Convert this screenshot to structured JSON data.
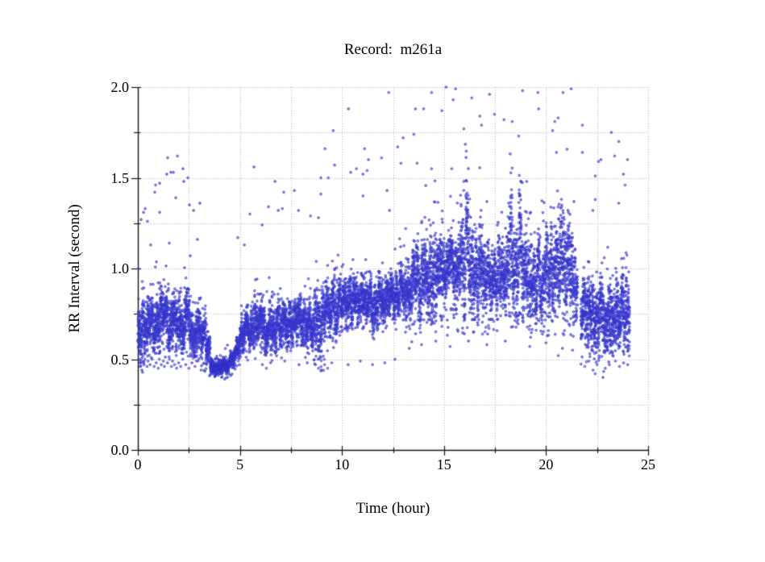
{
  "page": {
    "background": "#ffffff"
  },
  "chart_data": {
    "type": "scatter",
    "title": "Record:  m261a",
    "xlabel": "Time (hour)",
    "ylabel": "RR Interval (second)",
    "xlim": [
      0,
      25
    ],
    "ylim": [
      0.0,
      2.0
    ],
    "x_major_ticks": [
      0,
      5,
      10,
      15,
      20,
      25
    ],
    "x_major_labels": [
      "0",
      "5",
      "10",
      "15",
      "20",
      "25"
    ],
    "x_minor_step": 2.5,
    "y_major_ticks": [
      0.0,
      0.5,
      1.0,
      1.5,
      2.0
    ],
    "y_major_labels": [
      "0.0",
      "0.5",
      "1.0",
      "1.5",
      "2.0"
    ],
    "y_minor_step": 0.25,
    "grid": "dotted",
    "grid_color": "#ababab",
    "axis_color": "#161616",
    "point_color": "#3434cc",
    "point_fill": "rgba(112,112,232,0.55)",
    "point_stroke": "rgba(42,42,198,0.9)",
    "band_segments": [
      [
        0.0,
        0.3,
        0.52,
        0.82,
        130
      ],
      [
        0.3,
        0.7,
        0.55,
        0.8,
        170
      ],
      [
        0.7,
        1.1,
        0.57,
        0.86,
        175
      ],
      [
        1.1,
        1.5,
        0.6,
        0.9,
        175
      ],
      [
        1.5,
        1.9,
        0.55,
        0.85,
        175
      ],
      [
        1.9,
        2.3,
        0.58,
        0.87,
        175
      ],
      [
        2.3,
        2.7,
        0.55,
        0.84,
        175
      ],
      [
        2.7,
        3.1,
        0.53,
        0.8,
        170
      ],
      [
        3.1,
        3.4,
        0.48,
        0.74,
        115
      ],
      [
        3.4,
        3.55,
        0.44,
        0.62,
        55
      ],
      [
        3.55,
        4.5,
        0.42,
        0.5,
        420
      ],
      [
        4.5,
        4.7,
        0.44,
        0.53,
        80
      ],
      [
        4.7,
        4.85,
        0.47,
        0.58,
        55
      ],
      [
        4.85,
        5.0,
        0.51,
        0.66,
        55
      ],
      [
        5.0,
        5.2,
        0.55,
        0.73,
        80
      ],
      [
        5.2,
        5.7,
        0.56,
        0.78,
        210
      ],
      [
        5.7,
        6.2,
        0.58,
        0.84,
        210
      ],
      [
        6.2,
        6.8,
        0.55,
        0.8,
        250
      ],
      [
        6.8,
        7.4,
        0.58,
        0.82,
        250
      ],
      [
        7.4,
        8.0,
        0.6,
        0.85,
        250
      ],
      [
        8.0,
        8.6,
        0.58,
        0.82,
        250
      ],
      [
        8.6,
        9.2,
        0.52,
        0.88,
        245
      ],
      [
        9.2,
        9.8,
        0.62,
        0.92,
        245
      ],
      [
        9.8,
        10.4,
        0.68,
        0.92,
        250
      ],
      [
        10.4,
        11.0,
        0.7,
        0.94,
        250
      ],
      [
        11.0,
        11.6,
        0.68,
        0.94,
        250
      ],
      [
        11.6,
        12.2,
        0.7,
        0.95,
        250
      ],
      [
        12.2,
        12.8,
        0.73,
        0.97,
        250
      ],
      [
        12.8,
        13.4,
        0.72,
        1.0,
        250
      ],
      [
        13.4,
        14.0,
        0.72,
        1.12,
        260
      ],
      [
        14.0,
        14.6,
        0.74,
        1.18,
        260
      ],
      [
        14.6,
        15.2,
        0.75,
        1.12,
        260
      ],
      [
        15.2,
        15.8,
        0.78,
        1.16,
        260
      ],
      [
        15.8,
        16.45,
        0.76,
        1.38,
        285
      ],
      [
        16.45,
        17.0,
        0.74,
        1.2,
        240
      ],
      [
        17.0,
        17.6,
        0.72,
        1.1,
        250
      ],
      [
        17.6,
        18.2,
        0.74,
        1.16,
        250
      ],
      [
        18.2,
        18.8,
        0.76,
        1.42,
        265
      ],
      [
        18.8,
        19.4,
        0.74,
        1.22,
        250
      ],
      [
        19.4,
        20.0,
        0.72,
        1.16,
        250
      ],
      [
        20.0,
        20.6,
        0.74,
        1.22,
        250
      ],
      [
        20.6,
        21.3,
        0.74,
        1.28,
        290
      ],
      [
        21.3,
        21.55,
        0.72,
        1.1,
        90
      ],
      [
        21.7,
        22.2,
        0.55,
        0.95,
        220
      ],
      [
        22.2,
        22.8,
        0.52,
        0.95,
        265
      ],
      [
        22.8,
        23.4,
        0.55,
        0.92,
        265
      ],
      [
        23.4,
        24.1,
        0.56,
        0.96,
        300
      ]
    ],
    "outliers_high": [
      [
        0.16,
        1.27
      ],
      [
        0.28,
        1.31
      ],
      [
        0.36,
        1.33
      ],
      [
        0.47,
        1.26
      ],
      [
        0.63,
        1.13
      ],
      [
        0.83,
        1.42
      ],
      [
        0.87,
        1.46
      ],
      [
        1.07,
        1.47
      ],
      [
        1.07,
        1.31
      ],
      [
        1.42,
        1.52
      ],
      [
        1.46,
        1.61
      ],
      [
        1.54,
        1.14
      ],
      [
        1.62,
        1.53
      ],
      [
        1.74,
        1.53
      ],
      [
        1.86,
        1.39
      ],
      [
        1.94,
        1.62
      ],
      [
        2.21,
        1.55
      ],
      [
        2.25,
        1.48
      ],
      [
        2.45,
        1.5
      ],
      [
        2.53,
        1.35
      ],
      [
        2.57,
        1.07
      ],
      [
        2.73,
        1.32
      ],
      [
        2.92,
        1.16
      ],
      [
        3.04,
        1.36
      ],
      [
        4.9,
        1.17
      ],
      [
        5.22,
        1.13
      ],
      [
        5.49,
        1.3
      ],
      [
        5.69,
        1.56
      ],
      [
        6.09,
        1.24
      ],
      [
        6.4,
        1.34
      ],
      [
        6.72,
        1.48
      ],
      [
        6.88,
        1.32
      ],
      [
        7.08,
        1.33
      ],
      [
        7.15,
        1.42
      ],
      [
        7.67,
        1.43
      ],
      [
        7.87,
        1.32
      ],
      [
        8.46,
        1.29
      ],
      [
        8.85,
        1.28
      ],
      [
        8.97,
        1.5
      ],
      [
        8.97,
        1.41
      ],
      [
        9.17,
        1.66
      ],
      [
        9.33,
        1.5
      ],
      [
        9.57,
        1.76
      ],
      [
        9.64,
        1.57
      ],
      [
        10.32,
        1.88
      ],
      [
        10.43,
        1.53
      ],
      [
        10.71,
        1.55
      ],
      [
        11.03,
        1.52
      ],
      [
        11.03,
        1.4
      ],
      [
        11.11,
        1.66
      ],
      [
        11.23,
        1.54
      ],
      [
        11.3,
        1.6
      ],
      [
        11.94,
        1.61
      ],
      [
        12.21,
        1.43
      ],
      [
        12.29,
        1.97
      ],
      [
        12.33,
        1.32
      ],
      [
        12.73,
        1.67
      ],
      [
        12.89,
        1.58
      ],
      [
        13.0,
        1.72
      ],
      [
        13.12,
        1.22
      ],
      [
        13.52,
        1.74
      ],
      [
        13.6,
        1.88
      ],
      [
        13.68,
        1.58
      ],
      [
        13.91,
        1.26
      ],
      [
        14.0,
        1.88
      ],
      [
        14.39,
        1.97
      ],
      [
        14.39,
        1.55
      ],
      [
        14.9,
        1.87
      ],
      [
        15.1,
        2.0
      ],
      [
        15.38,
        1.55
      ],
      [
        15.45,
        1.93
      ],
      [
        15.57,
        1.99
      ],
      [
        15.97,
        1.77
      ],
      [
        15.97,
        1.48
      ],
      [
        15.97,
        1.43
      ],
      [
        16.36,
        1.94
      ],
      [
        16.76,
        1.84
      ],
      [
        16.84,
        1.79
      ],
      [
        16.88,
        1.24
      ],
      [
        17.23,
        1.96
      ],
      [
        17.47,
        1.85
      ],
      [
        17.83,
        1.31
      ],
      [
        17.94,
        1.82
      ],
      [
        18.34,
        1.81
      ],
      [
        18.34,
        1.39
      ],
      [
        18.66,
        1.73
      ],
      [
        18.85,
        1.98
      ],
      [
        19.05,
        1.48
      ],
      [
        19.05,
        1.31
      ],
      [
        19.25,
        1.31
      ],
      [
        19.6,
        1.97
      ],
      [
        19.64,
        1.88
      ],
      [
        20.32,
        1.76
      ],
      [
        20.43,
        1.81
      ],
      [
        20.51,
        1.64
      ],
      [
        20.59,
        1.83
      ],
      [
        20.59,
        1.34
      ],
      [
        20.83,
        1.97
      ],
      [
        20.83,
        1.32
      ],
      [
        21.23,
        1.99
      ],
      [
        21.78,
        1.79
      ],
      [
        21.78,
        1.64
      ],
      [
        22.29,
        1.32
      ],
      [
        22.41,
        1.51
      ],
      [
        22.41,
        1.38
      ],
      [
        22.57,
        1.59
      ],
      [
        22.69,
        1.6
      ],
      [
        23.2,
        1.75
      ],
      [
        23.36,
        1.62
      ],
      [
        23.56,
        1.7
      ],
      [
        23.56,
        1.36
      ],
      [
        23.79,
        1.52
      ],
      [
        23.87,
        1.46
      ],
      [
        23.99,
        1.6
      ]
    ],
    "outliers_low": [
      [
        0.05,
        0.5
      ],
      [
        0.1,
        0.46
      ],
      [
        0.15,
        0.48
      ],
      [
        0.2,
        0.44
      ],
      [
        0.3,
        0.47
      ],
      [
        0.35,
        0.5
      ],
      [
        0.45,
        0.46
      ],
      [
        0.5,
        0.49
      ],
      [
        0.6,
        0.47
      ],
      [
        0.7,
        0.5
      ],
      [
        0.8,
        0.46
      ],
      [
        0.9,
        0.48
      ],
      [
        1.0,
        0.45
      ],
      [
        1.05,
        0.5
      ],
      [
        1.15,
        0.47
      ],
      [
        1.25,
        0.49
      ],
      [
        1.3,
        0.46
      ],
      [
        1.45,
        0.48
      ],
      [
        1.55,
        0.5
      ],
      [
        1.65,
        0.46
      ],
      [
        1.7,
        0.49
      ],
      [
        1.8,
        0.47
      ],
      [
        1.9,
        0.45
      ],
      [
        2.0,
        0.48
      ],
      [
        2.1,
        0.46
      ],
      [
        2.2,
        0.5
      ],
      [
        2.35,
        0.47
      ],
      [
        2.5,
        0.45
      ],
      [
        2.65,
        0.48
      ],
      [
        2.8,
        0.46
      ],
      [
        2.95,
        0.49
      ],
      [
        3.1,
        0.44
      ],
      [
        4.1,
        0.4
      ],
      [
        4.25,
        0.39
      ],
      [
        4.4,
        0.4
      ],
      [
        4.55,
        0.41
      ],
      [
        6.1,
        0.47
      ],
      [
        6.3,
        0.45
      ],
      [
        6.5,
        0.48
      ],
      [
        7.2,
        0.49
      ],
      [
        7.9,
        0.47
      ],
      [
        8.3,
        0.48
      ],
      [
        8.7,
        0.47
      ],
      [
        8.85,
        0.45
      ],
      [
        9.0,
        0.44
      ],
      [
        9.15,
        0.47
      ],
      [
        9.3,
        0.45
      ],
      [
        9.5,
        0.48
      ],
      [
        10.3,
        0.47
      ],
      [
        10.9,
        0.49
      ],
      [
        11.5,
        0.47
      ],
      [
        12.1,
        0.48
      ],
      [
        12.6,
        0.5
      ],
      [
        13.3,
        0.56
      ],
      [
        13.9,
        0.58
      ],
      [
        14.6,
        0.6
      ],
      [
        15.3,
        0.57
      ],
      [
        16.2,
        0.6
      ],
      [
        17.1,
        0.58
      ],
      [
        18.0,
        0.6
      ],
      [
        19.2,
        0.57
      ],
      [
        20.0,
        0.59
      ],
      [
        20.6,
        0.52
      ],
      [
        20.8,
        0.56
      ],
      [
        21.3,
        0.55
      ],
      [
        21.9,
        0.46
      ],
      [
        22.1,
        0.49
      ],
      [
        22.3,
        0.44
      ],
      [
        22.5,
        0.47
      ],
      [
        22.9,
        0.45
      ],
      [
        23.1,
        0.47
      ],
      [
        23.4,
        0.49
      ],
      [
        23.6,
        0.46
      ],
      [
        23.8,
        0.48
      ],
      [
        24.0,
        0.47
      ]
    ]
  }
}
